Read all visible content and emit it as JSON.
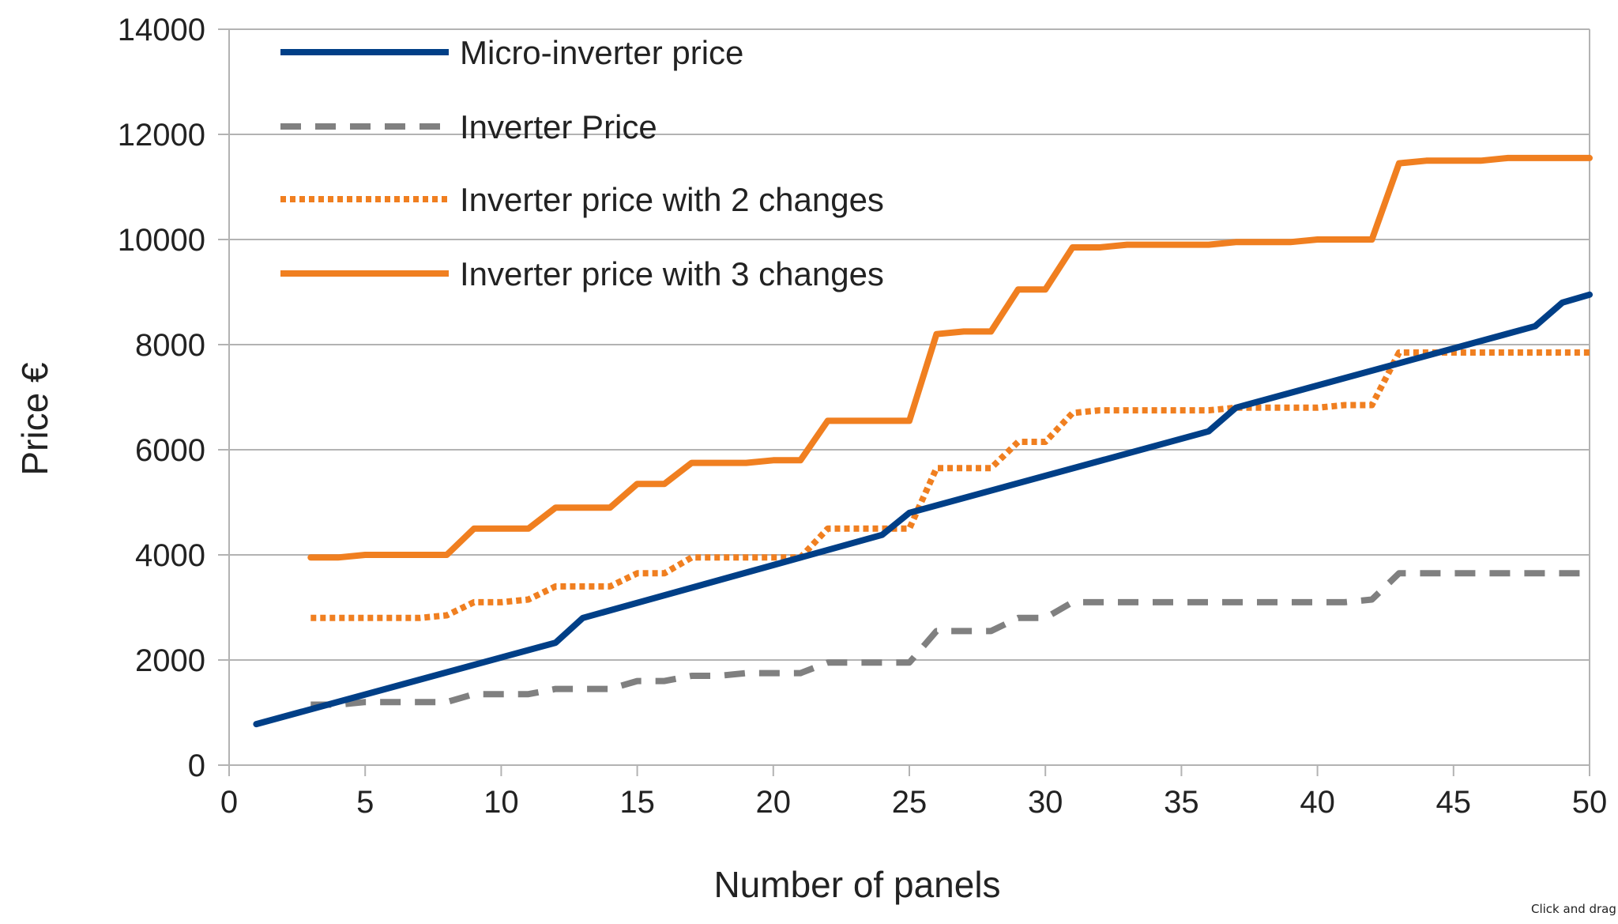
{
  "chart_data": {
    "type": "line",
    "title": "",
    "xlabel": "Number of panels",
    "ylabel": "Price €",
    "xlim": [
      0,
      50
    ],
    "ylim": [
      0,
      14000
    ],
    "x_ticks": [
      0,
      5,
      10,
      15,
      20,
      25,
      30,
      35,
      40,
      45,
      50
    ],
    "y_ticks": [
      0,
      2000,
      4000,
      6000,
      8000,
      10000,
      12000,
      14000
    ],
    "grid": "horizontal",
    "legend_position": "top-left",
    "series": [
      {
        "name": "Micro-inverter price",
        "color": "#003f87",
        "style": "solid",
        "x": [
          1,
          12,
          13,
          24,
          25,
          36,
          37,
          48,
          49,
          50
        ],
        "y": [
          780,
          2330,
          2800,
          4380,
          4800,
          6350,
          6800,
          8350,
          8800,
          8950
        ]
      },
      {
        "name": "Inverter Price",
        "color": "#808080",
        "style": "dashed",
        "x": [
          3,
          4,
          5,
          6,
          7,
          8,
          9,
          10,
          11,
          12,
          13,
          14,
          15,
          16,
          17,
          18,
          19,
          20,
          21,
          22,
          23,
          24,
          25,
          26,
          27,
          28,
          29,
          30,
          31,
          32,
          33,
          34,
          35,
          36,
          37,
          38,
          39,
          40,
          41,
          42,
          43,
          44,
          45,
          46,
          47,
          48,
          49,
          50
        ],
        "y": [
          1150,
          1150,
          1200,
          1200,
          1200,
          1200,
          1350,
          1350,
          1350,
          1450,
          1450,
          1450,
          1600,
          1600,
          1700,
          1700,
          1750,
          1750,
          1750,
          1950,
          1950,
          1950,
          1950,
          2550,
          2550,
          2550,
          2800,
          2800,
          3100,
          3100,
          3100,
          3100,
          3100,
          3100,
          3100,
          3100,
          3100,
          3100,
          3100,
          3150,
          3650,
          3650,
          3650,
          3650,
          3650,
          3650,
          3650,
          3650
        ]
      },
      {
        "name": "Inverter price with 2 changes",
        "color": "#f07f20",
        "style": "dotted",
        "x": [
          3,
          4,
          5,
          6,
          7,
          8,
          9,
          10,
          11,
          12,
          13,
          14,
          15,
          16,
          17,
          18,
          19,
          20,
          21,
          22,
          23,
          24,
          25,
          26,
          27,
          28,
          29,
          30,
          31,
          32,
          33,
          34,
          35,
          36,
          37,
          38,
          39,
          40,
          41,
          42,
          43,
          44,
          45,
          46,
          47,
          48,
          49,
          50
        ],
        "y": [
          2800,
          2800,
          2800,
          2800,
          2800,
          2850,
          3100,
          3100,
          3150,
          3400,
          3400,
          3400,
          3650,
          3650,
          3950,
          3950,
          3950,
          3950,
          3950,
          4500,
          4500,
          4500,
          4500,
          5650,
          5650,
          5650,
          6150,
          6150,
          6700,
          6750,
          6750,
          6750,
          6750,
          6750,
          6800,
          6800,
          6800,
          6800,
          6850,
          6850,
          7850,
          7850,
          7850,
          7850,
          7850,
          7850,
          7850,
          7850
        ]
      },
      {
        "name": "Inverter price with 3 changes",
        "color": "#f07f20",
        "style": "solid",
        "x": [
          3,
          4,
          5,
          6,
          7,
          8,
          9,
          10,
          11,
          12,
          13,
          14,
          15,
          16,
          17,
          18,
          19,
          20,
          21,
          22,
          23,
          24,
          25,
          26,
          27,
          28,
          29,
          30,
          31,
          32,
          33,
          34,
          35,
          36,
          37,
          38,
          39,
          40,
          41,
          42,
          43,
          44,
          45,
          46,
          47,
          48,
          49,
          50
        ],
        "y": [
          3950,
          3950,
          4000,
          4000,
          4000,
          4000,
          4500,
          4500,
          4500,
          4900,
          4900,
          4900,
          5350,
          5350,
          5750,
          5750,
          5750,
          5800,
          5800,
          6550,
          6550,
          6550,
          6550,
          8200,
          8250,
          8250,
          9050,
          9050,
          9850,
          9850,
          9900,
          9900,
          9900,
          9900,
          9950,
          9950,
          9950,
          10000,
          10000,
          10000,
          11450,
          11500,
          11500,
          11500,
          11550,
          11550,
          11550,
          11550
        ]
      }
    ]
  },
  "corner_note": "Click and drag"
}
